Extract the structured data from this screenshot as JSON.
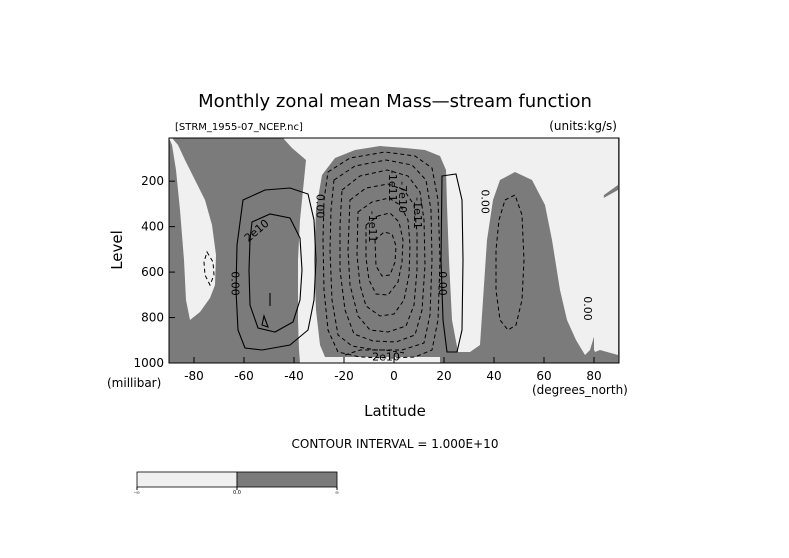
{
  "chart_data": {
    "type": "contour",
    "title": "Monthly zonal mean Mass—stream function",
    "file_label": "[STRM_1955-07_NCEP.nc]",
    "units_label": "(units:kg/s)",
    "xlabel": "Latitude",
    "x_unit_label": "(degrees_north)",
    "ylabel": "Level",
    "y_unit_label": "(millibar)",
    "xlim": [
      -90,
      90
    ],
    "ylim": [
      1000,
      10
    ],
    "x_ticks": [
      -80,
      -60,
      -40,
      -20,
      0,
      20,
      40,
      60,
      80
    ],
    "y_ticks": [
      200,
      400,
      600,
      800,
      1000
    ],
    "contour_interval_text": "CONTOUR INTERVAL = 1.000E+10",
    "shading": {
      "positive": "#7b7b7b",
      "negative": "#f0f0f0"
    },
    "contour_labels": [
      {
        "text": "0.00",
        "x": -65,
        "y": 650
      },
      {
        "text": "2e10",
        "x": -54,
        "y": 430
      },
      {
        "text": "0.00",
        "x": -31,
        "y": 310
      },
      {
        "text": "-1e11",
        "x": -2,
        "y": 220
      },
      {
        "text": "-7e10",
        "x": 2,
        "y": 270
      },
      {
        "text": "-1e11",
        "x": -10,
        "y": 400
      },
      {
        "text": "-1e11",
        "x": 8,
        "y": 340
      },
      {
        "text": "0.00",
        "x": 18,
        "y": 650
      },
      {
        "text": "0.00",
        "x": 35,
        "y": 290
      },
      {
        "text": "0.00",
        "x": 76,
        "y": 760
      },
      {
        "text": "-2e10",
        "x": -4,
        "y": 990
      }
    ],
    "colorbar": {
      "ticks": [
        "-∞",
        "0.0",
        "∞"
      ],
      "colors": [
        "#f0f0f0",
        "#7b7b7b"
      ]
    }
  }
}
